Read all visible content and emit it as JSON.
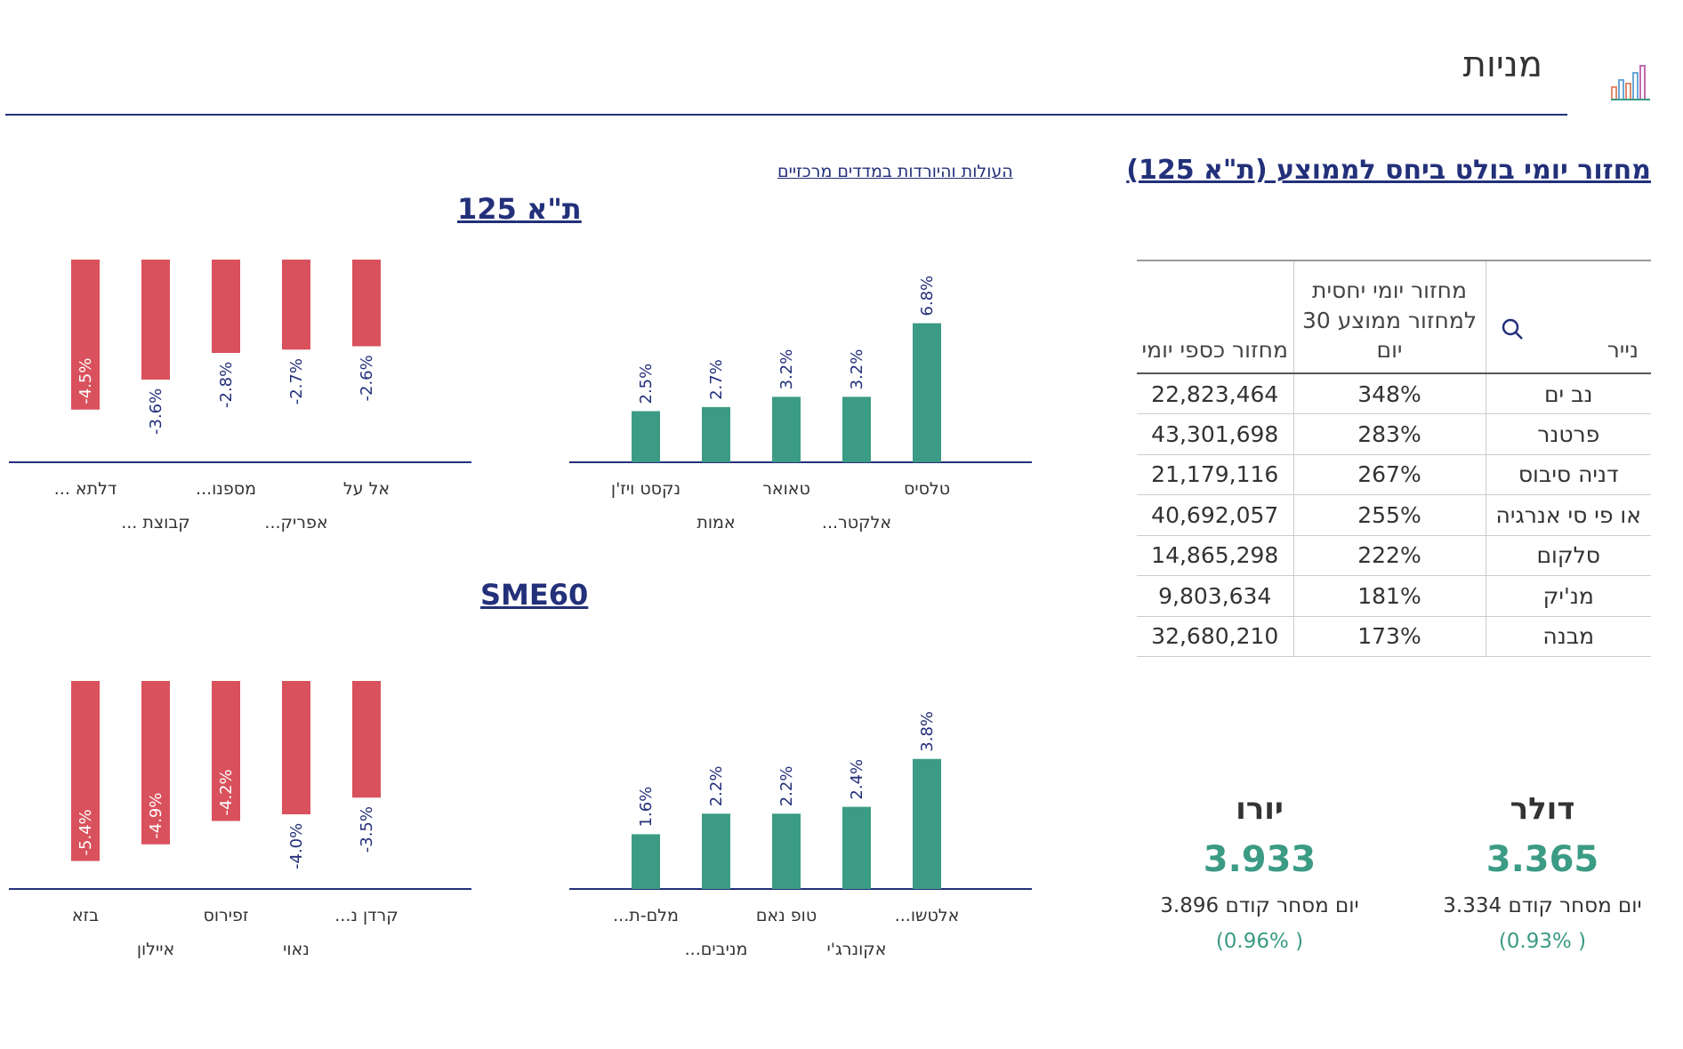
{
  "header": {
    "title": "מניות",
    "icon": "bar-chart-icon"
  },
  "turnover": {
    "title": "מחזור יומי בולט ביחס לממוצע (ת\"א 125)",
    "columns": {
      "name": "נייר",
      "ratio": "מחזור יומי יחסית למחזור ממוצע 30 יום",
      "cash": "מחזור כספי יומי"
    },
    "rows": [
      {
        "name": "נב ים",
        "ratio": "348%",
        "cash": "22,823,464"
      },
      {
        "name": "פרטנר",
        "ratio": "283%",
        "cash": "43,301,698"
      },
      {
        "name": "דניה סיבוס",
        "ratio": "267%",
        "cash": "21,179,116"
      },
      {
        "name": "או פי סי אנרגיה",
        "ratio": "255%",
        "cash": "40,692,057"
      },
      {
        "name": "סלקום",
        "ratio": "222%",
        "cash": "14,865,298"
      },
      {
        "name": "מנ'יק",
        "ratio": "181%",
        "cash": "9,803,634"
      },
      {
        "name": "מבנה",
        "ratio": "173%",
        "cash": "32,680,210"
      }
    ]
  },
  "currencies": {
    "usd": {
      "name": "דולר",
      "value": "3.365",
      "prev_label": "יום מסחר קודם",
      "prev_value": "3.334",
      "change": "( 0.93%)"
    },
    "eur": {
      "name": "יורו",
      "value": "3.933",
      "prev_label": "יום מסחר קודם",
      "prev_value": "3.896",
      "change": "( 0.96%)"
    }
  },
  "movers_link": "העולות והיורדות במדדים מרכזיים",
  "colors": {
    "accent": "#23307a",
    "up": "#3b9b84",
    "down": "#d9515c"
  },
  "chart_data": [
    {
      "type": "bar",
      "index": "ת\"א 125",
      "direction": "up",
      "categories": [
        "טלסיס",
        "אלקטר...",
        "טאואר",
        "אמות",
        "נקסט ויז'ן"
      ],
      "values": [
        6.8,
        3.2,
        3.2,
        2.7,
        2.5
      ],
      "labels": [
        "6.8%",
        "3.2%",
        "3.2%",
        "2.7%",
        "2.5%"
      ]
    },
    {
      "type": "bar",
      "index": "ת\"א 125",
      "direction": "down",
      "categories": [
        "אל על",
        "אפריק...",
        "מספנו...",
        "קבוצת ...",
        "דלתא ..."
      ],
      "values": [
        -2.6,
        -2.7,
        -2.8,
        -3.6,
        -4.5
      ],
      "labels": [
        "-2.6%",
        "-2.7%",
        "-2.8%",
        "-3.6%",
        "-4.5%"
      ]
    },
    {
      "type": "bar",
      "index": "SME60",
      "direction": "up",
      "categories": [
        "אלטשו...",
        "אקונרג'י",
        "טופ נאם",
        "מניבים...",
        "מלם-ת..."
      ],
      "values": [
        3.8,
        2.4,
        2.2,
        2.2,
        1.6
      ],
      "labels": [
        "3.8%",
        "2.4%",
        "2.2%",
        "2.2%",
        "1.6%"
      ]
    },
    {
      "type": "bar",
      "index": "SME60",
      "direction": "down",
      "categories": [
        "קרדן נ...",
        "נאוי",
        "זפירוס",
        "איילון",
        "בזא"
      ],
      "values": [
        -3.5,
        -4.0,
        -4.2,
        -4.9,
        -5.4
      ],
      "labels": [
        "-3.5%",
        "-4.0%",
        "-4.2%",
        "-4.9%",
        "-5.4%"
      ]
    }
  ]
}
